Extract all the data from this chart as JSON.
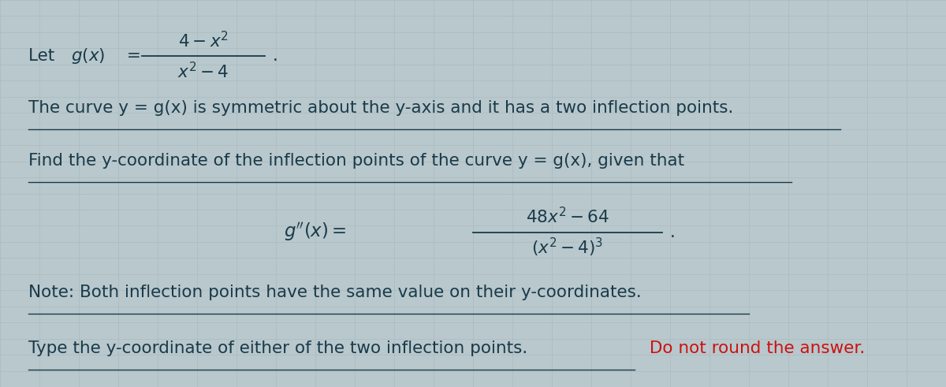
{
  "bg_color": "#b8c8cc",
  "grid_color": "#a8b8bc",
  "text_color": "#1a3a4a",
  "red_color": "#cc1111",
  "figsize": [
    12.0,
    4.91
  ],
  "dpi": 100,
  "line2": "The curve y = g(x) is symmetric about the y-axis and it has a two inflection points.",
  "line3": "Find the y-coordinate of the inflection points of the curve y = g(x), given that",
  "note_line": "Note: Both inflection points have the same value on their y-coordinates.",
  "last_line_black": "Type the y-coordinate of either of the two inflection points.",
  "last_line_red": "Do not round the answer."
}
